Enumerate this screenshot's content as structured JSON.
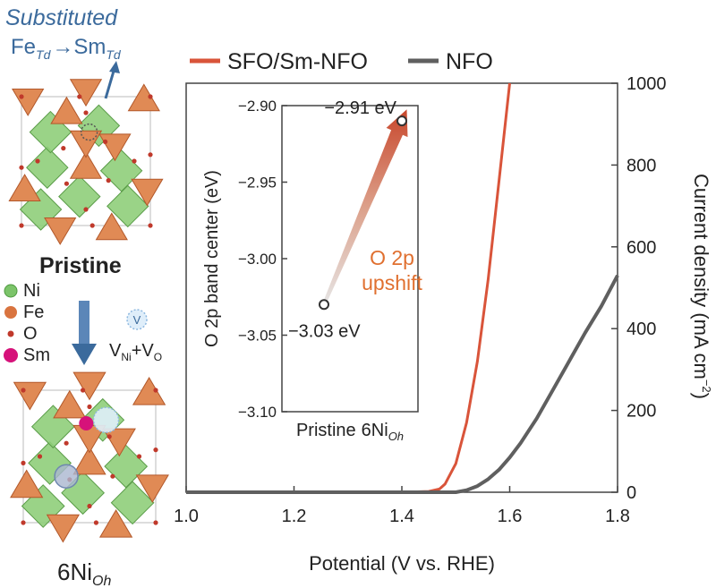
{
  "left_panel": {
    "substituted_label": "Substituted",
    "substitution_from": "Fe",
    "substitution_from_sub": "Td",
    "substitution_arrow": "→",
    "substitution_to": "Sm",
    "substitution_to_sub": "Td",
    "pristine_label": "Pristine",
    "legend": [
      {
        "label": "Ni",
        "color": "#7cc46a"
      },
      {
        "label": "Fe",
        "color": "#d9743f"
      },
      {
        "label": "O",
        "color": "#c0392b"
      },
      {
        "label": "Sm",
        "color": "#d6127a"
      }
    ],
    "vacancy_symbol": "V",
    "vacancy_label_main": "V",
    "vacancy_sub1": "Ni",
    "vacancy_plus": "+V",
    "vacancy_sub2": "O",
    "bottom_label": "6Ni",
    "bottom_label_sub": "Oh"
  },
  "colors": {
    "sfo": "#d9543a",
    "nfo": "#5f5f5f",
    "title_blue": "#3b6a9c",
    "upshift": "#e07030"
  },
  "chart_data": [
    {
      "type": "line",
      "xlabel": "Potential (V vs. RHE)",
      "ylabel": "Current density (mA cm",
      "ylabel_sup": "−2",
      "ylabel_end": ")",
      "xlim": [
        1.0,
        1.8
      ],
      "ylim": [
        0,
        1000
      ],
      "xticks": [
        "1.0",
        "1.2",
        "1.4",
        "1.6",
        "1.8"
      ],
      "yticks": [
        "0",
        "200",
        "400",
        "600",
        "800",
        "1000"
      ],
      "grid": false,
      "legend_position": "top",
      "series": [
        {
          "name": "SFO/Sm-NFO",
          "x": [
            1.0,
            1.4,
            1.45,
            1.47,
            1.48,
            1.5,
            1.52,
            1.54,
            1.56,
            1.58,
            1.59,
            1.6
          ],
          "y": [
            0,
            0,
            2,
            8,
            20,
            70,
            170,
            320,
            520,
            760,
            880,
            1000
          ]
        },
        {
          "name": "NFO",
          "x": [
            1.0,
            1.5,
            1.52,
            1.54,
            1.56,
            1.58,
            1.6,
            1.62,
            1.65,
            1.68,
            1.71,
            1.74,
            1.77,
            1.8
          ],
          "y": [
            0,
            0,
            5,
            15,
            32,
            55,
            85,
            120,
            180,
            250,
            320,
            390,
            455,
            530
          ]
        }
      ]
    },
    {
      "type": "scatter",
      "ylabel": "O 2p band center (eV)",
      "ylim": [
        -3.1,
        -2.9
      ],
      "yticks": [
        "−2.90",
        "−2.95",
        "−3.00",
        "−3.05",
        "−3.10"
      ],
      "categories": [
        "Pristine",
        "6Ni"
      ],
      "categories_sub": [
        "",
        "Oh"
      ],
      "values": [
        -3.03,
        -2.91
      ],
      "annotations": [
        "−3.03 eV",
        "−2.91 eV"
      ],
      "arrow_label_line1": "O 2p",
      "arrow_label_line2": "upshift"
    }
  ]
}
